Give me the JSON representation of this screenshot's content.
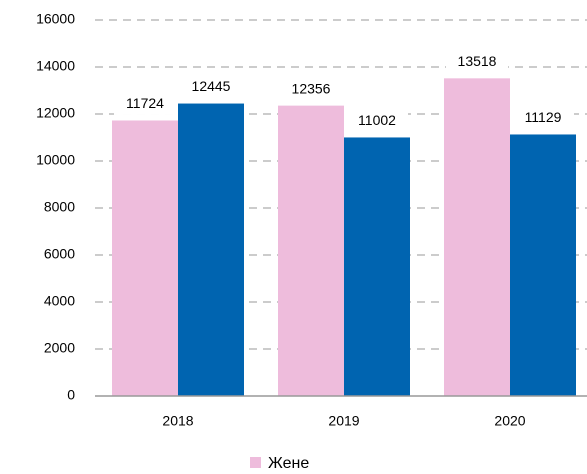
{
  "chart_data": {
    "type": "bar",
    "categories": [
      "2018",
      "2019",
      "2020"
    ],
    "series": [
      {
        "name": "Жене",
        "color": "#eebcdc",
        "values": [
          11724,
          12356,
          13518
        ]
      },
      {
        "color": "#0064b0",
        "values": [
          12445,
          11002,
          11129
        ]
      }
    ],
    "ylim": [
      0,
      16000
    ],
    "yticks": [
      0,
      2000,
      4000,
      6000,
      8000,
      10000,
      12000,
      14000,
      16000
    ],
    "grid": true
  }
}
